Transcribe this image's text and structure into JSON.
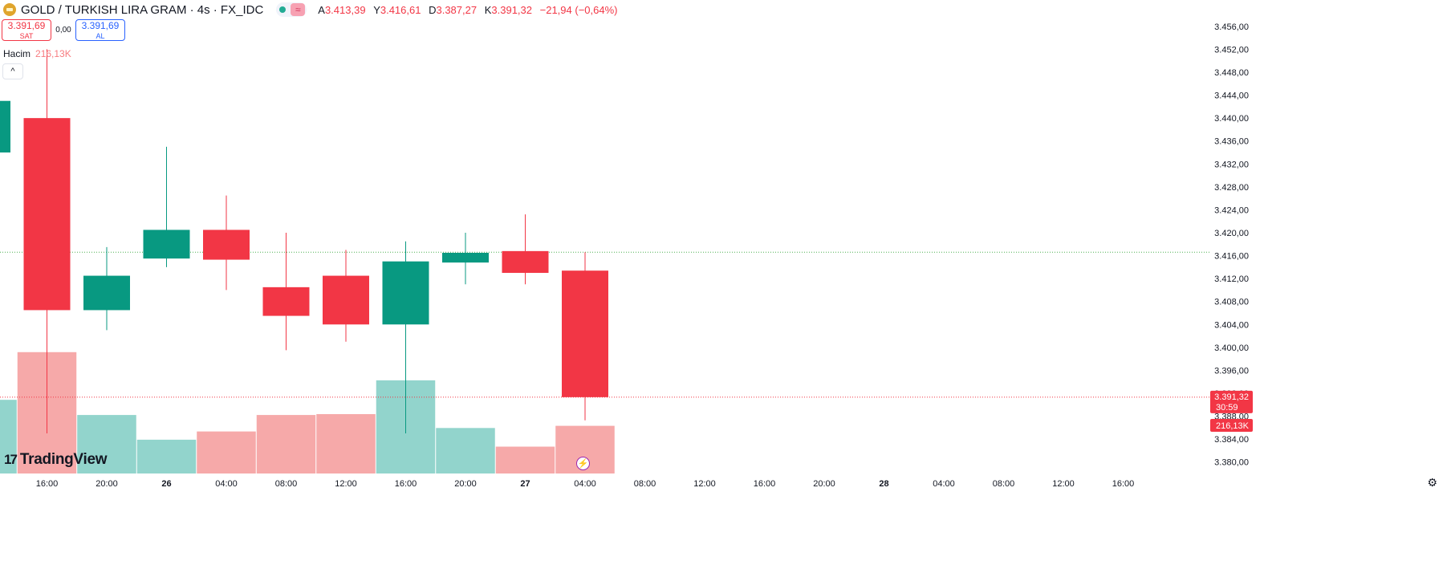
{
  "header": {
    "title": "GOLD / TURKISH LIRA GRAM · 4s · FX_IDC",
    "ohlc": [
      {
        "key": "A",
        "value": "3.413,39"
      },
      {
        "key": "Y",
        "value": "3.416,61"
      },
      {
        "key": "D",
        "value": "3.387,27"
      },
      {
        "key": "K",
        "value": "3.391,32"
      }
    ],
    "change": "−21,94 (−0,64%)"
  },
  "trade": {
    "sell_price": "3.391,69",
    "sell_label": "SAT",
    "spread": "0,00",
    "buy_price": "3.391,69",
    "buy_label": "AL"
  },
  "volume_legend": {
    "label": "Hacim",
    "value": "216,13K"
  },
  "collapse_icon": "^",
  "logo_mark": "17",
  "logo_text": "TradingView",
  "price_tag": {
    "price": "3.391,32",
    "countdown": "30:59"
  },
  "volume_tag": "216,13K",
  "bolt_icon": "⚡",
  "settings_icon": "⚙",
  "colors": {
    "up": "#089981",
    "down": "#f23645",
    "vol_up": "#92d4cc",
    "vol_down": "#f6a9a9"
  },
  "chart_data": {
    "type": "candlestick",
    "candles": [
      {
        "time": "12:00",
        "open": 3434.0,
        "high": 3444.0,
        "low": 3434.0,
        "close": 3443.0,
        "volume": 170
      },
      {
        "time": "16:00",
        "open": 3440.0,
        "high": 3452.0,
        "low": 3385.0,
        "close": 3406.5,
        "volume": 280
      },
      {
        "time": "20:00",
        "open": 3406.5,
        "high": 3417.5,
        "low": 3403.0,
        "close": 3412.5,
        "volume": 135
      },
      {
        "time": "26 00:00",
        "open": 3415.5,
        "high": 3435.0,
        "low": 3414.0,
        "close": 3420.5,
        "volume": 78
      },
      {
        "time": "04:00",
        "open": 3420.5,
        "high": 3426.5,
        "low": 3410.0,
        "close": 3415.3,
        "volume": 97
      },
      {
        "time": "08:00",
        "open": 3410.5,
        "high": 3420.0,
        "low": 3399.5,
        "close": 3405.5,
        "volume": 135
      },
      {
        "time": "12:00",
        "open": 3412.5,
        "high": 3417.0,
        "low": 3401.0,
        "close": 3404.0,
        "volume": 137
      },
      {
        "time": "16:00",
        "open": 3404.0,
        "high": 3418.5,
        "low": 3385.0,
        "close": 3415.0,
        "volume": 215
      },
      {
        "time": "20:00",
        "open": 3414.8,
        "high": 3420.0,
        "low": 3411.0,
        "close": 3416.5,
        "volume": 105
      },
      {
        "time": "27 00:00",
        "open": 3416.8,
        "high": 3423.2,
        "low": 3411.0,
        "close": 3413.0,
        "volume": 62
      },
      {
        "time": "04:00",
        "open": 3413.39,
        "high": 3416.61,
        "low": 3387.27,
        "close": 3391.32,
        "volume": 110
      }
    ],
    "ylim": [
      3378.0,
      3458.5
    ],
    "y_ticks": [
      "3.380,00",
      "3.384,00",
      "3.388,00",
      "3.392,00",
      "3.396,00",
      "3.400,00",
      "3.404,00",
      "3.408,00",
      "3.412,00",
      "3.416,00",
      "3.420,00",
      "3.424,00",
      "3.428,00",
      "3.432,00",
      "3.436,00",
      "3.440,00",
      "3.444,00",
      "3.448,00",
      "3.452,00",
      "3.456,00"
    ],
    "y_tick_values": [
      3380,
      3384,
      3388,
      3392,
      3396,
      3400,
      3404,
      3408,
      3412,
      3416,
      3420,
      3424,
      3428,
      3432,
      3436,
      3440,
      3444,
      3448,
      3452,
      3456
    ],
    "x_ticks": [
      "16:00",
      "20:00",
      "26",
      "04:00",
      "08:00",
      "12:00",
      "16:00",
      "20:00",
      "27",
      "04:00",
      "08:00",
      "12:00",
      "16:00",
      "20:00",
      "28",
      "04:00",
      "08:00",
      "12:00",
      "16:00"
    ],
    "x_ticks_bold": [
      "26",
      "27",
      "28"
    ],
    "prev_close_line": 3416.6,
    "last_price_line": 3391.32,
    "grid": false
  }
}
